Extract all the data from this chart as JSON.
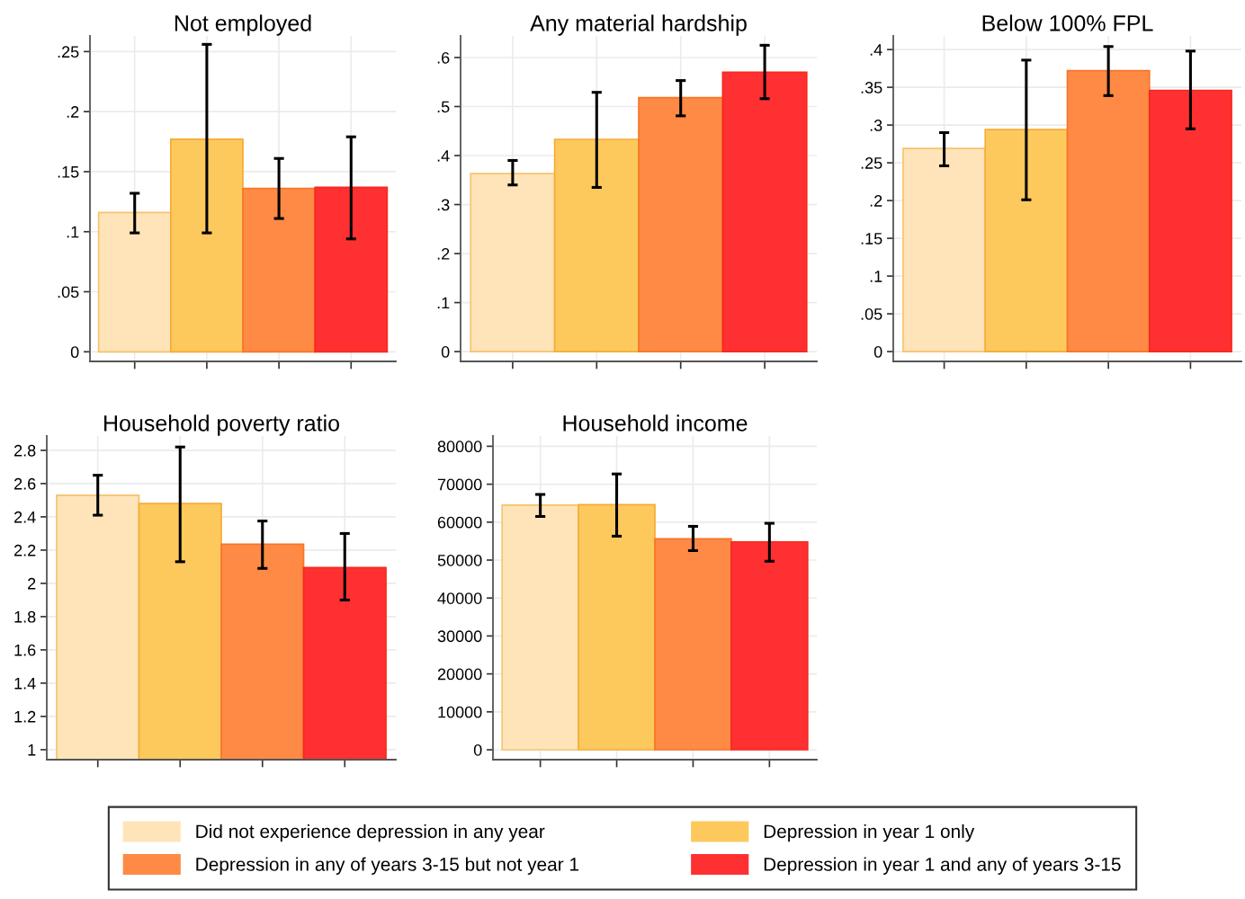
{
  "chart_data": [
    {
      "type": "bar",
      "title": "Not employed",
      "categories": [
        null,
        null,
        null,
        null
      ],
      "ylim": [
        -0.008,
        0.263
      ],
      "yticks": [
        0,
        {
          "value": 0.05,
          "label": ".05"
        },
        {
          "value": 0.1,
          "label": ".1"
        },
        {
          "value": 0.15,
          "label": ".15"
        },
        {
          "value": 0.2,
          "label": ".2"
        },
        {
          "value": 0.25,
          "label": ".25"
        }
      ],
      "grid": true,
      "tick_labels": "y",
      "legend": "bottom",
      "series": [
        {
          "name": "Did not experience depression in any year",
          "color": "#fee4b8",
          "values": [
            0.116,
            null,
            null,
            null
          ],
          "errors": [
            [
              0.099,
              0.132
            ],
            null,
            null,
            null
          ]
        },
        {
          "name": "Depression in year 1 only",
          "color": "#fec95c",
          "values": [
            null,
            0.177,
            null,
            null
          ],
          "errors": [
            null,
            [
              0.099,
              0.256
            ],
            null,
            null
          ]
        },
        {
          "name": "Depression in any of years 3-15 but not year 1",
          "color": "#fe8a45",
          "values": [
            null,
            null,
            0.136,
            null
          ],
          "errors": [
            null,
            null,
            [
              0.111,
              0.161
            ],
            null
          ]
        },
        {
          "name": "Depression in year 1 and any of years 3-15",
          "color": "#fe3032",
          "values": [
            null,
            null,
            null,
            0.137
          ],
          "errors": [
            null,
            null,
            null,
            [
              0.094,
              0.179
            ]
          ]
        }
      ]
    },
    {
      "type": "bar",
      "title": "Any material hardship",
      "categories": [
        null,
        null,
        null,
        null
      ],
      "ylim": [
        -0.02,
        0.644
      ],
      "yticks": [
        0,
        {
          "value": 0.1,
          "label": ".1"
        },
        {
          "value": 0.2,
          "label": ".2"
        },
        {
          "value": 0.3,
          "label": ".3"
        },
        {
          "value": 0.4,
          "label": ".4"
        },
        {
          "value": 0.5,
          "label": ".5"
        },
        {
          "value": 0.6,
          "label": ".6"
        }
      ],
      "grid": true,
      "tick_labels": "y",
      "series": [
        {
          "color": "#fee4b8",
          "values": [
            0.363,
            null,
            null,
            null
          ],
          "errors": [
            [
              0.34,
              0.39
            ],
            null,
            null,
            null
          ]
        },
        {
          "color": "#fec95c",
          "values": [
            null,
            0.433,
            null,
            null
          ],
          "errors": [
            null,
            [
              0.335,
              0.529
            ],
            null,
            null
          ]
        },
        {
          "color": "#fe8a45",
          "values": [
            null,
            null,
            0.518,
            null
          ],
          "errors": [
            null,
            null,
            [
              0.481,
              0.553
            ],
            null
          ]
        },
        {
          "color": "#fe3032",
          "values": [
            null,
            null,
            null,
            0.57
          ],
          "errors": [
            null,
            null,
            null,
            [
              0.516,
              0.625
            ]
          ]
        }
      ]
    },
    {
      "type": "bar",
      "title": "Below 100% FPL",
      "categories": [
        null,
        null,
        null,
        null
      ],
      "ylim": [
        -0.013,
        0.418
      ],
      "yticks": [
        0,
        {
          "value": 0.05,
          "label": ".05"
        },
        {
          "value": 0.1,
          "label": ".1"
        },
        {
          "value": 0.15,
          "label": ".15"
        },
        {
          "value": 0.2,
          "label": ".2"
        },
        {
          "value": 0.25,
          "label": ".25"
        },
        {
          "value": 0.3,
          "label": ".3"
        },
        {
          "value": 0.35,
          "label": ".35"
        },
        {
          "value": 0.4,
          "label": ".4"
        }
      ],
      "grid": true,
      "tick_labels": "y",
      "series": [
        {
          "color": "#fee4b8",
          "values": [
            0.269,
            null,
            null,
            null
          ],
          "errors": [
            [
              0.246,
              0.29
            ],
            null,
            null,
            null
          ]
        },
        {
          "color": "#fec95c",
          "values": [
            null,
            0.294,
            null,
            null
          ],
          "errors": [
            null,
            [
              0.201,
              0.386
            ],
            null,
            null
          ]
        },
        {
          "color": "#fe8a45",
          "values": [
            null,
            null,
            0.372,
            null
          ],
          "errors": [
            null,
            null,
            [
              0.339,
              0.404
            ],
            null
          ]
        },
        {
          "color": "#fe3032",
          "values": [
            null,
            null,
            null,
            0.346
          ],
          "errors": [
            null,
            null,
            null,
            [
              0.295,
              0.398
            ]
          ]
        }
      ]
    },
    {
      "type": "bar",
      "title": "Household poverty ratio",
      "categories": [
        null,
        null,
        null,
        null
      ],
      "ylim": [
        0.94,
        2.886
      ],
      "yticks": [
        1,
        1.2,
        1.4,
        1.6,
        1.8,
        2,
        2.2,
        2.4,
        2.6,
        2.8
      ],
      "grid": true,
      "tick_labels": "y",
      "series": [
        {
          "color": "#fee4b8",
          "values": [
            2.53,
            null,
            null,
            null
          ],
          "errors": [
            [
              2.41,
              2.65
            ],
            null,
            null,
            null
          ]
        },
        {
          "color": "#fec95c",
          "values": [
            null,
            2.48,
            null,
            null
          ],
          "errors": [
            null,
            [
              2.13,
              2.82
            ],
            null,
            null
          ]
        },
        {
          "color": "#fe8a45",
          "values": [
            null,
            null,
            2.235,
            null
          ],
          "errors": [
            null,
            null,
            [
              2.09,
              2.375
            ],
            null
          ]
        },
        {
          "color": "#fe3032",
          "values": [
            null,
            null,
            null,
            2.095
          ],
          "errors": [
            null,
            null,
            null,
            [
              1.9,
              2.3
            ]
          ]
        }
      ]
    },
    {
      "type": "bar",
      "title": "Household income",
      "categories": [
        null,
        null,
        null,
        null
      ],
      "ylim": [
        -2600,
        82700
      ],
      "yticks": [
        0,
        10000,
        20000,
        30000,
        40000,
        50000,
        60000,
        70000,
        80000
      ],
      "grid": true,
      "tick_labels": "y",
      "series": [
        {
          "color": "#fee4b8",
          "values": [
            64500,
            null,
            null,
            null
          ],
          "errors": [
            [
              61500,
              67300
            ],
            null,
            null,
            null
          ]
        },
        {
          "color": "#fec95c",
          "values": [
            null,
            64600,
            null,
            null
          ],
          "errors": [
            null,
            [
              56300,
              72700
            ],
            null,
            null
          ]
        },
        {
          "color": "#fe8a45",
          "values": [
            null,
            null,
            55600,
            null
          ],
          "errors": [
            null,
            null,
            [
              52500,
              58900
            ],
            null
          ]
        },
        {
          "color": "#fe3032",
          "values": [
            null,
            null,
            null,
            54800
          ],
          "errors": [
            null,
            null,
            null,
            [
              49700,
              59700
            ]
          ]
        }
      ]
    }
  ]
}
